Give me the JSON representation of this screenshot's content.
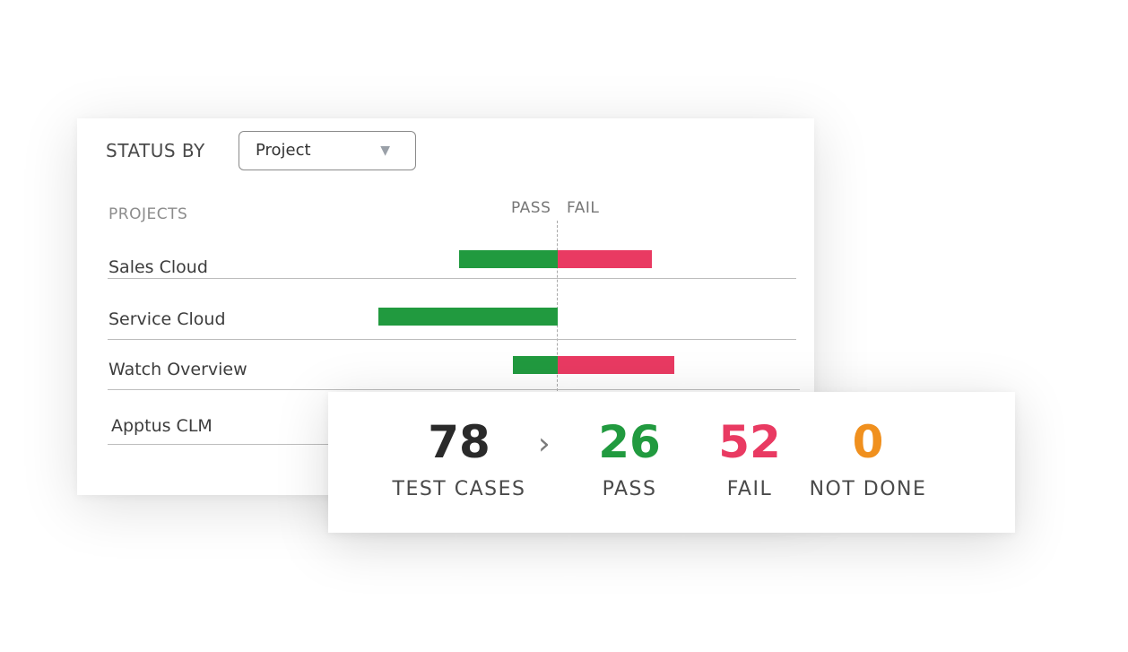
{
  "status_card": {
    "status_by_label": "STATUS BY",
    "dropdown": {
      "selected": "Project",
      "caret_icon": "chevron-down-icon"
    },
    "projects_header": "PROJECTS",
    "pass_header": "PASS",
    "fail_header": "FAIL",
    "projects": [
      {
        "name": "Sales Cloud",
        "pass": 22,
        "fail": 21
      },
      {
        "name": "Service Cloud",
        "pass": 40,
        "fail": 0
      },
      {
        "name": "Watch Overview",
        "pass": 10,
        "fail": 26
      },
      {
        "name": "Apptus CLM"
      }
    ]
  },
  "summary": {
    "total_value": "78",
    "total_label": "TEST CASES",
    "chevron_icon": "chevron-right-icon",
    "pass_value": "26",
    "pass_label": "PASS",
    "fail_value": "52",
    "fail_label": "FAIL",
    "not_done_value": "0",
    "not_done_label": "NOT DONE"
  },
  "colors": {
    "pass": "#219a3f",
    "fail": "#e93a62",
    "not_done": "#f0901e",
    "total": "#2a2a2a"
  }
}
